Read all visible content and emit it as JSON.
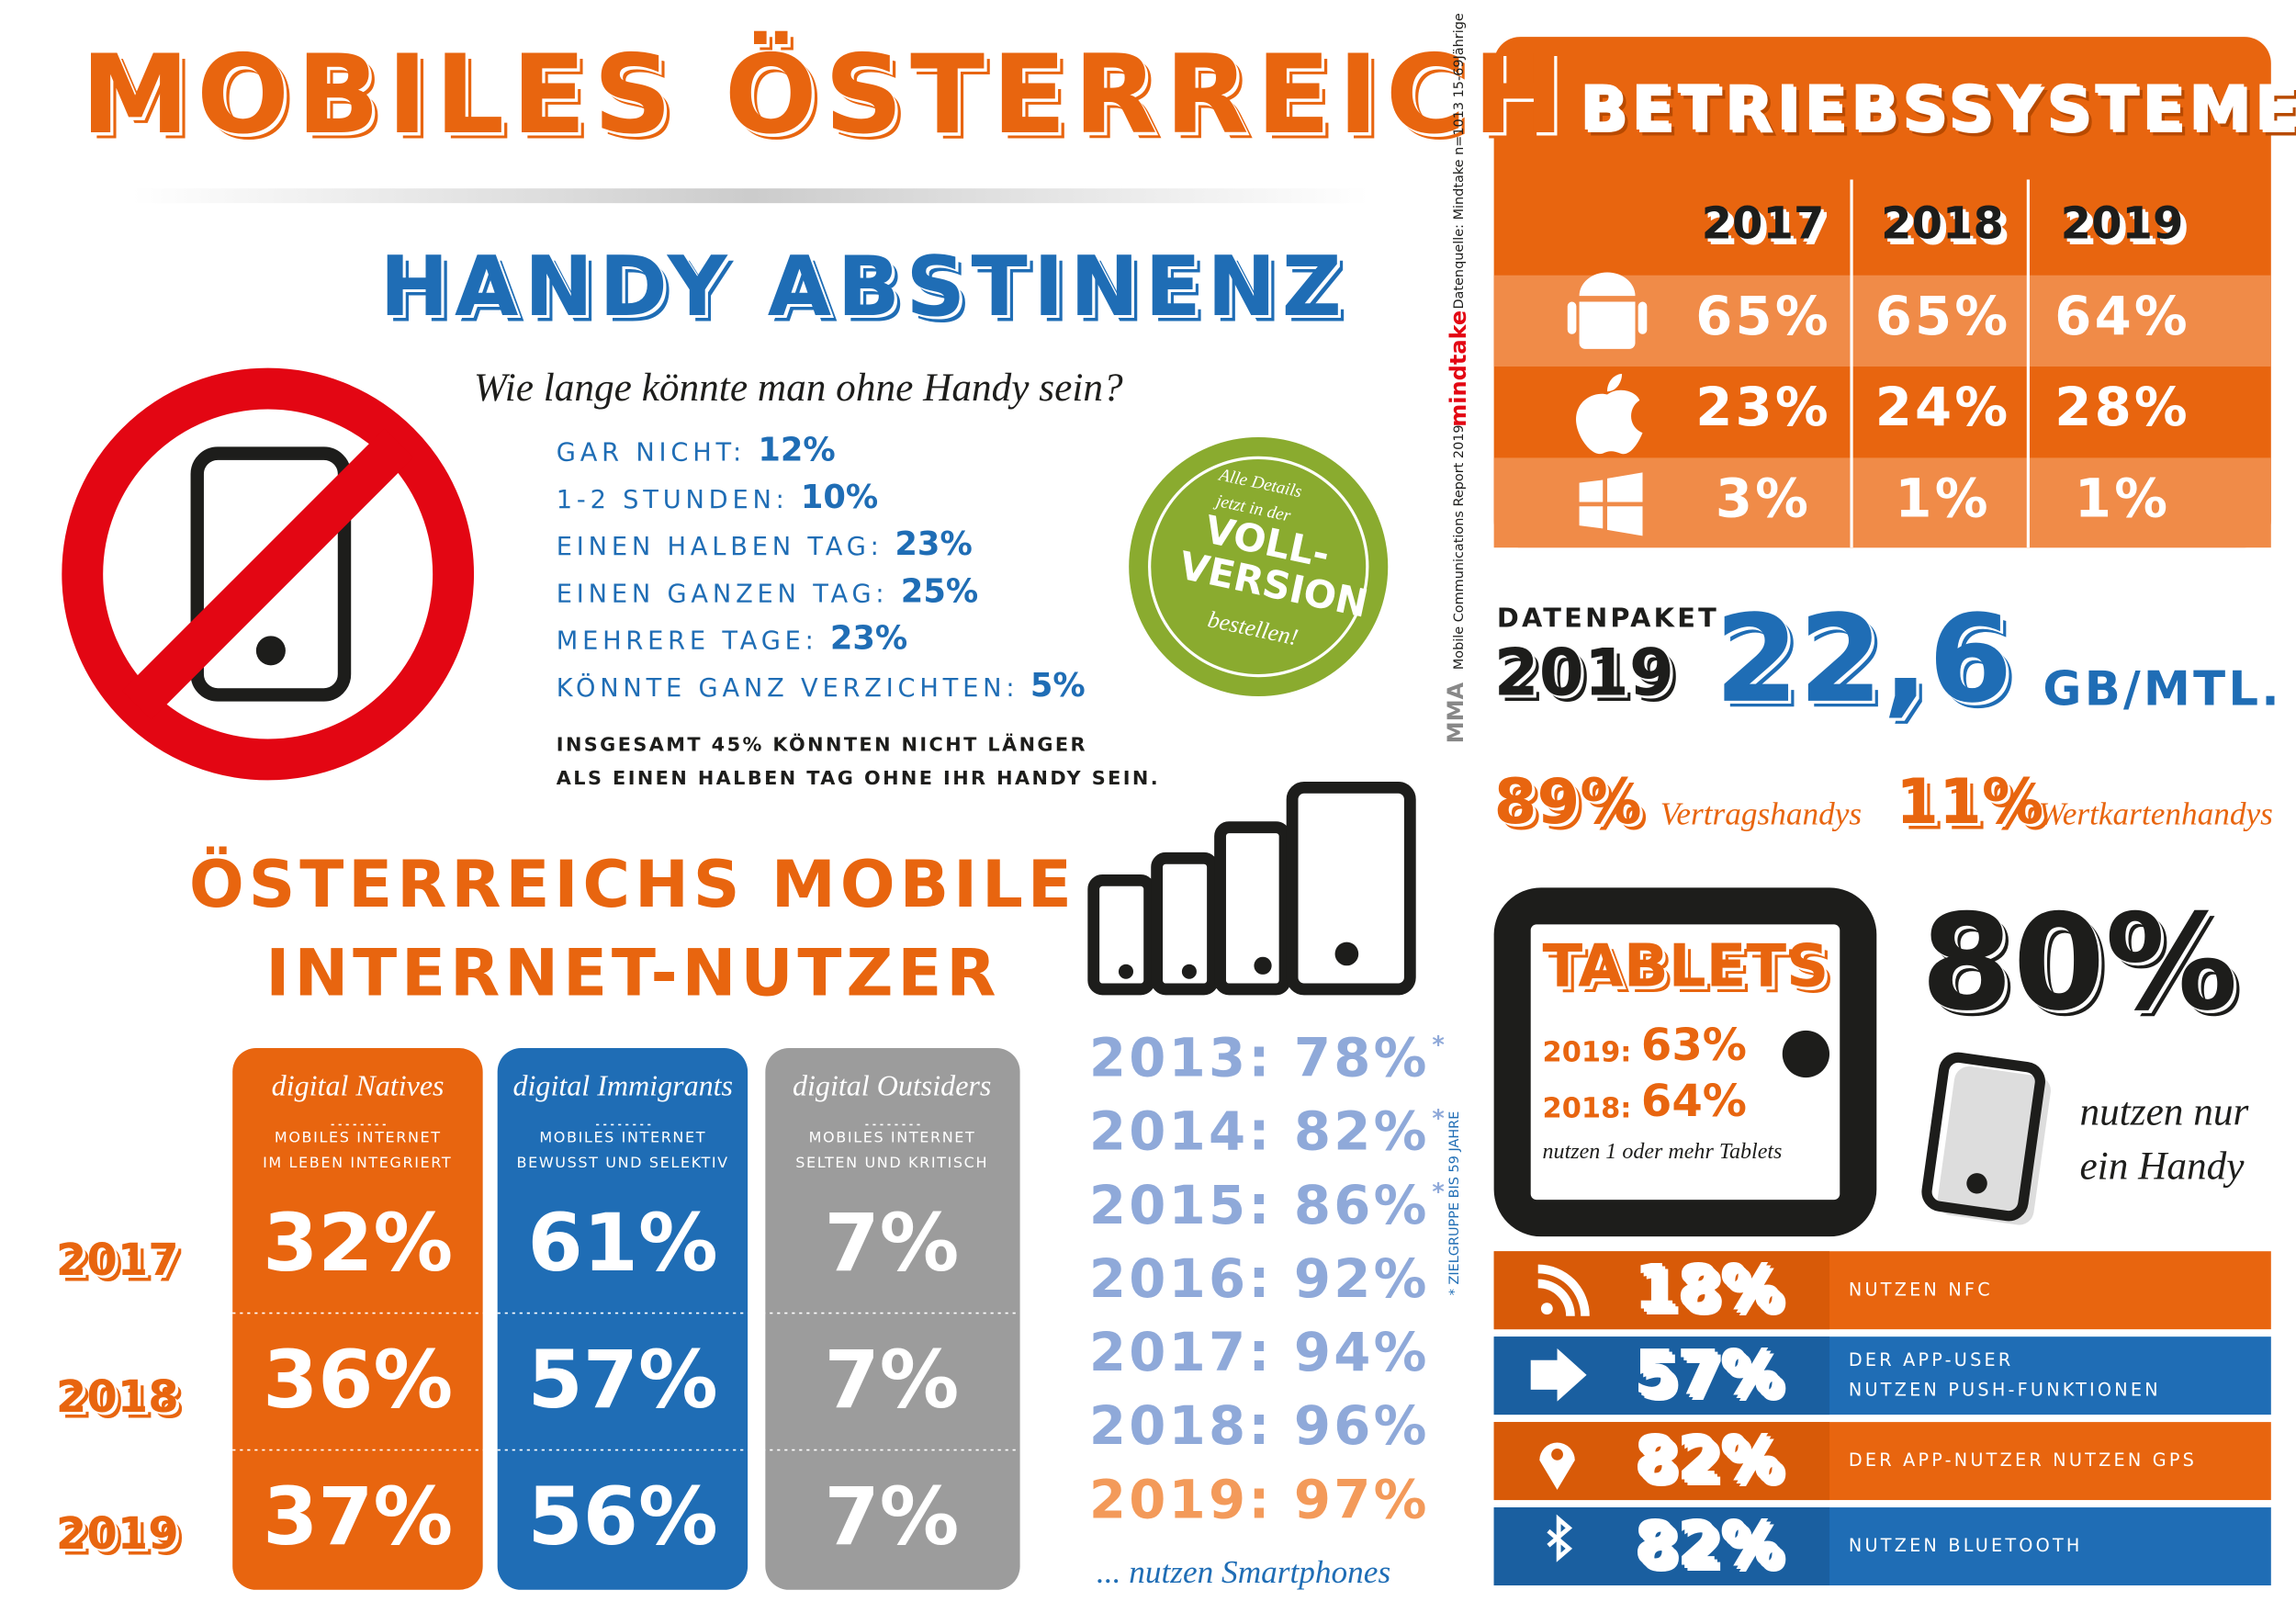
{
  "title": "MOBILES ÖSTERREICH",
  "abstinenz": {
    "title": "HANDY ABSTINENZ",
    "subtitle": "Wie lange könnte man ohne Handy sein?",
    "items": [
      {
        "label": "GAR NICHT:",
        "value": "12%"
      },
      {
        "label": "1-2 STUNDEN:",
        "value": "10%"
      },
      {
        "label": "EINEN HALBEN TAG:",
        "value": "23%"
      },
      {
        "label": "EINEN GANZEN TAG:",
        "value": "25%"
      },
      {
        "label": "MEHRERE TAGE:",
        "value": "23%"
      },
      {
        "label": "KÖNNTE GANZ VERZICHTEN:",
        "value": "5%"
      }
    ],
    "note": [
      "INSGESAMT 45% KÖNNTEN NICHT LÄNGER",
      "ALS EINEN HALBEN TAG OHNE IHR HANDY SEIN."
    ]
  },
  "badge": [
    "Alle Details",
    "jetzt in der",
    "VOLL-",
    "VERSION",
    "bestellen!"
  ],
  "internet": {
    "title": [
      "ÖSTERREICHS MOBILE",
      "INTERNET-NUTZER"
    ],
    "years": [
      "2017",
      "2018",
      "2019"
    ],
    "groups": [
      {
        "name": "digital Natives",
        "desc": [
          "MOBILES INTERNET",
          "IM LEBEN INTEGRIERT"
        ],
        "values": [
          "32%",
          "36%",
          "37%"
        ]
      },
      {
        "name": "digital Immigrants",
        "desc": [
          "MOBILES INTERNET",
          "BEWUSST UND SELEKTIV"
        ],
        "values": [
          "61%",
          "57%",
          "56%"
        ]
      },
      {
        "name": "digital Outsiders",
        "desc": [
          "MOBILES INTERNET",
          "SELTEN UND KRITISCH"
        ],
        "values": [
          "7%",
          "7%",
          "7%"
        ]
      }
    ]
  },
  "smartphones": {
    "rows": [
      {
        "text": "2013: 78%",
        "mark": "*"
      },
      {
        "text": "2014: 82%",
        "mark": "*"
      },
      {
        "text": "2015: 86%",
        "mark": "*"
      },
      {
        "text": "2016: 92%"
      },
      {
        "text": "2017: 94%"
      },
      {
        "text": "2018: 96%"
      },
      {
        "text": "2019: 97%"
      }
    ],
    "caption": "... nutzen Smartphones"
  },
  "footnote": "* ZIELGRUPPE BIS 59 JAHRE",
  "source": "Datenquelle: Mindtake n=1013 15-69Jährige",
  "report": "Mobile Communications Report 2019",
  "logos": [
    "mindtake",
    "MMA"
  ],
  "os": {
    "title": "BETRIEBSSYSTEME",
    "years": [
      "2017",
      "2018",
      "2019"
    ],
    "rows": [
      [
        "65%",
        "65%",
        "64%"
      ],
      [
        "23%",
        "24%",
        "28%"
      ],
      [
        "3%",
        "1%",
        "1%"
      ]
    ]
  },
  "datenpaket": {
    "label": "DATENPAKET",
    "year": "2019",
    "value": "22,6",
    "unit": "GB/MTL."
  },
  "contracts": [
    {
      "value": "89%",
      "label": "Vertragshandys"
    },
    {
      "value": "11%",
      "label": "Wertkartenhandys"
    }
  ],
  "tablets": {
    "title": "TABLETS",
    "rows": [
      {
        "year": "2019:",
        "value": "63%"
      },
      {
        "year": "2018:",
        "value": "64%"
      }
    ],
    "caption": "nutzen 1 oder mehr Tablets"
  },
  "one_handy": {
    "value": "80%",
    "caption": [
      "nutzen nur",
      "ein Handy"
    ]
  },
  "features": [
    {
      "value": "18%",
      "label": [
        "NUTZEN NFC"
      ]
    },
    {
      "value": "57%",
      "label": [
        "DER APP-USER",
        "NUTZEN PUSH-FUNKTIONEN"
      ]
    },
    {
      "value": "82%",
      "label": [
        "DER APP-NUTZER NUTZEN GPS"
      ]
    },
    {
      "value": "82%",
      "label": [
        "NUTZEN BLUETOOTH"
      ]
    }
  ]
}
